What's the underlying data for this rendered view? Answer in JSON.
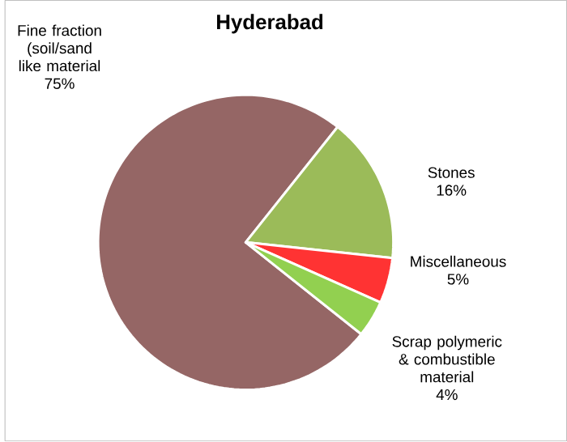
{
  "chart_data": {
    "type": "pie",
    "title": "Hyderabad",
    "categories": [
      "Fine fraction (soil/sand like material",
      "Stones",
      "Miscellaneous",
      "Scrap polymeric & combustible material"
    ],
    "values": [
      75,
      16,
      5,
      4
    ],
    "value_labels": [
      "75%",
      "16%",
      "5%",
      "4%"
    ],
    "colors": [
      "#956665",
      "#9bbb59",
      "#ff3333",
      "#92d050"
    ],
    "legend": false
  }
}
